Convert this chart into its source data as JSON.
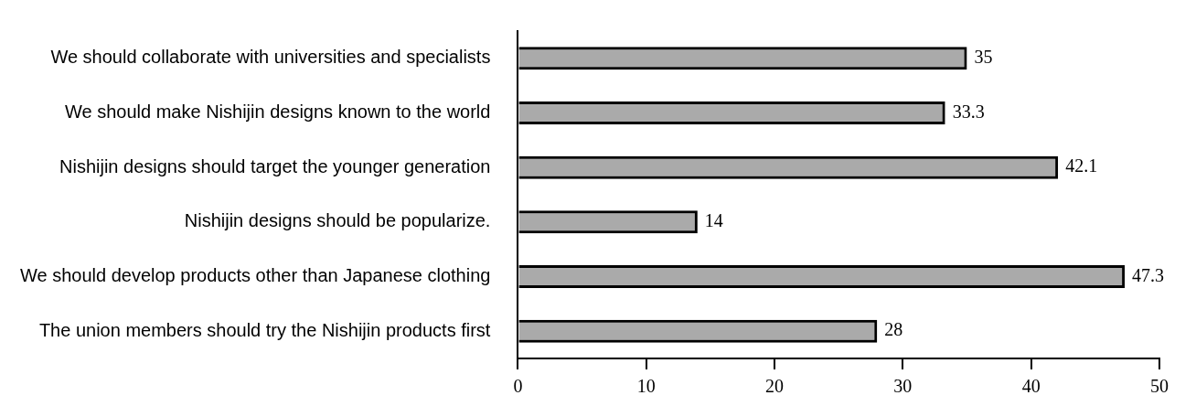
{
  "chart_data": {
    "type": "bar",
    "orientation": "horizontal",
    "categories": [
      "We should collaborate with universities and specialists",
      "We should make Nishijin designs known to the world",
      "Nishijin designs should target the younger generation",
      "Nishijin designs should be popularize.",
      "We should develop products other than Japanese clothing",
      "The union members should try the Nishijin products first"
    ],
    "values": [
      35,
      33.3,
      42.1,
      14,
      47.3,
      28
    ],
    "color": "#000000",
    "xlim": [
      0,
      50
    ],
    "xticks": [
      0,
      10,
      20,
      30,
      40,
      50
    ],
    "grid": false,
    "legend": false,
    "data_labels": true
  }
}
